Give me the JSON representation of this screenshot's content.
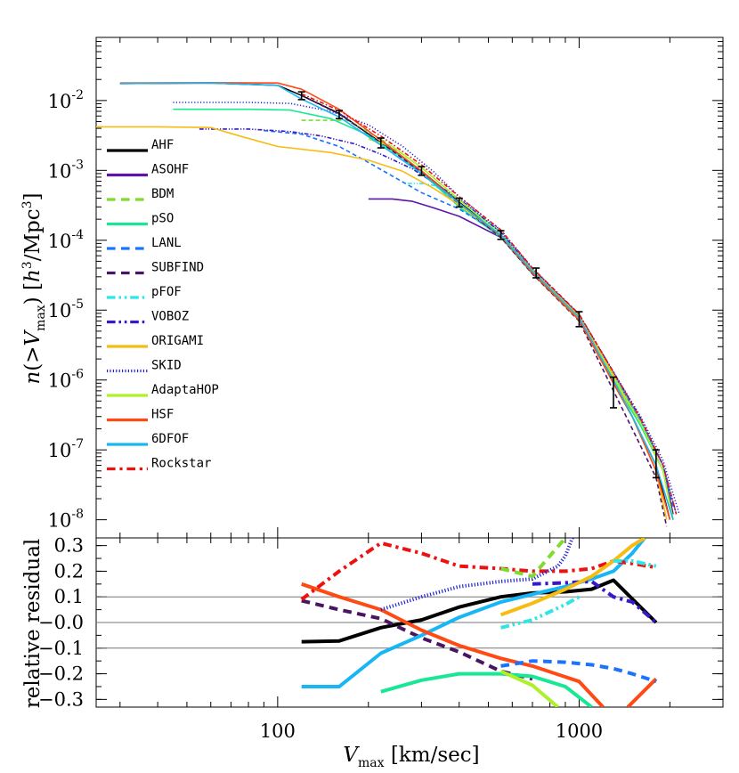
{
  "chart_data": [
    {
      "type": "line",
      "xscale": "log",
      "yscale": "log",
      "xlim": [
        25,
        3000
      ],
      "ylim": [
        5.5e-09,
        0.08
      ],
      "ylabel": "n(>V_max) [h^3/Mpc^3]",
      "y_ticks": [
        {
          "value": 0.01,
          "label": "10",
          "exp": "-2"
        },
        {
          "value": 0.001,
          "label": "10",
          "exp": "-3"
        },
        {
          "value": 0.0001,
          "label": "10",
          "exp": "-4"
        },
        {
          "value": 1e-05,
          "label": "10",
          "exp": "-5"
        },
        {
          "value": 1e-06,
          "label": "10",
          "exp": "-6"
        },
        {
          "value": 1e-07,
          "label": "10",
          "exp": "-7"
        },
        {
          "value": 1e-08,
          "label": "10",
          "exp": "-8"
        }
      ],
      "series": [
        {
          "name": "AHF",
          "color": "#000000",
          "dash": "solid",
          "x": [
            30,
            60,
            100,
            120,
            160,
            220,
            300,
            400,
            550,
            700,
            1000,
            1300,
            1500,
            1800,
            2000
          ],
          "y": [
            0.0175,
            0.0178,
            0.0165,
            0.0118,
            0.0065,
            0.0025,
            0.00098,
            0.00035,
            0.00012,
            3.6e-05,
            7.5e-06,
            9e-07,
            3e-07,
            6e-08,
            1e-08
          ]
        },
        {
          "name": "ASOHF",
          "color": "#5b16a8",
          "dash": "solid",
          "x": [
            200,
            240,
            280,
            330,
            400,
            550,
            700,
            1000,
            1300,
            1600,
            1900,
            2050
          ],
          "y": [
            0.00039,
            0.00039,
            0.00036,
            0.00029,
            0.00022,
            0.00011,
            3.4e-05,
            7.8e-06,
            1.2e-06,
            2.5e-07,
            6e-08,
            1.2e-08
          ]
        },
        {
          "name": "BDM",
          "color": "#7edc2e",
          "dash": "dashed",
          "x": [
            120,
            170,
            220,
            300,
            400,
            550,
            700,
            1000,
            1300,
            1600,
            1900,
            2050
          ],
          "y": [
            0.0052,
            0.0052,
            0.0028,
            0.0011,
            0.00038,
            0.00013,
            3.8e-05,
            8.2e-06,
            1.2e-06,
            2.5e-07,
            5e-08,
            1e-08
          ]
        },
        {
          "name": "pSO",
          "color": "#18e896",
          "dash": "solid",
          "x": [
            45,
            80,
            110,
            150,
            200,
            260,
            330,
            400,
            550,
            700,
            1000,
            1300,
            1600,
            1900,
            2050
          ],
          "y": [
            0.0075,
            0.0075,
            0.0073,
            0.0055,
            0.0032,
            0.0015,
            0.00064,
            0.0003,
            0.00011,
            3.3e-05,
            7.2e-06,
            1e-06,
            2.2e-07,
            5e-08,
            1e-08
          ]
        },
        {
          "name": "LANL",
          "color": "#1a73ff",
          "dash": "dashed",
          "x": [
            90,
            120,
            160,
            200,
            250,
            300,
            400,
            550,
            700,
            1000,
            1300,
            1600,
            1900,
            2050
          ],
          "y": [
            0.0037,
            0.0033,
            0.0022,
            0.0013,
            0.00075,
            0.00048,
            0.00028,
            0.00012,
            3.7e-05,
            8.3e-06,
            1.2e-06,
            2.5e-07,
            6e-08,
            1.5e-08
          ]
        },
        {
          "name": "SUBFIND",
          "color": "#4a1560",
          "dash": "dashed",
          "x": [
            120,
            160,
            220,
            300,
            400,
            550,
            700,
            1000,
            1300,
            1500,
            1800,
            1950
          ],
          "y": [
            0.0118,
            0.0064,
            0.0025,
            0.00094,
            0.00033,
            0.00011,
            3.3e-05,
            7e-06,
            7e-07,
            2e-07,
            4e-08,
            8e-09
          ]
        },
        {
          "name": "pFOF",
          "color": "#2ee6e6",
          "dash": "dashdotdot",
          "x": [
            270,
            300,
            330,
            400,
            550,
            700,
            1000,
            1300,
            1600,
            1900,
            2100
          ],
          "y": [
            0.00065,
            0.00065,
            0.00061,
            0.00039,
            0.00013,
            3.9e-05,
            8.5e-06,
            1.2e-06,
            2.7e-07,
            6e-08,
            1.2e-08
          ]
        },
        {
          "name": "VOBOZ",
          "color": "#3a17c9",
          "dash": "dashdotdot",
          "x": [
            55,
            80,
            110,
            140,
            180,
            220,
            280,
            400,
            550,
            700,
            1000,
            1300,
            1600,
            1900,
            2100
          ],
          "y": [
            0.0039,
            0.0039,
            0.0036,
            0.0031,
            0.0024,
            0.0017,
            0.00105,
            0.00039,
            0.00013,
            3.9e-05,
            8.5e-06,
            1.3e-06,
            2.8e-07,
            6e-08,
            1.2e-08
          ]
        },
        {
          "name": "ORIGAMI",
          "color": "#f5bd13",
          "dash": "solid",
          "x": [
            25,
            40,
            60,
            75,
            100,
            150,
            200,
            260,
            330,
            400,
            550,
            700,
            1000,
            1300,
            1500,
            1800,
            1950
          ],
          "y": [
            0.0042,
            0.0042,
            0.0041,
            0.0031,
            0.0022,
            0.0018,
            0.0014,
            0.00097,
            0.00055,
            0.00032,
            0.00012,
            3.7e-05,
            8.2e-06,
            1.2e-06,
            3e-07,
            5e-08,
            1e-08
          ]
        },
        {
          "name": "SKID",
          "color": "#2323d6",
          "dash": "dotted",
          "x": [
            45,
            80,
            110,
            150,
            200,
            260,
            330,
            400,
            550,
            700,
            1000,
            1300,
            1600,
            1900,
            2150
          ],
          "y": [
            0.0094,
            0.0094,
            0.0091,
            0.007,
            0.0045,
            0.0022,
            0.00095,
            0.00042,
            0.00014,
            4e-05,
            8.7e-06,
            1.3e-06,
            3e-07,
            7e-08,
            1.2e-08
          ]
        },
        {
          "name": "AdaptaHOP",
          "color": "#aef02a",
          "dash": "solid",
          "x": [
            200,
            240,
            300,
            400,
            550,
            700,
            1000,
            1300,
            1600,
            1900,
            2050
          ],
          "y": [
            0.0028,
            0.0022,
            0.0011,
            0.00038,
            0.00012,
            3.5e-05,
            7.5e-06,
            1.1e-06,
            2.4e-07,
            5e-08,
            1e-08
          ]
        },
        {
          "name": "HSF",
          "color": "#ff4a14",
          "dash": "solid",
          "x": [
            30,
            60,
            100,
            120,
            160,
            220,
            300,
            400,
            550,
            700,
            1000,
            1300,
            1500,
            1800,
            2000
          ],
          "y": [
            0.0178,
            0.018,
            0.0178,
            0.0145,
            0.0075,
            0.0027,
            0.00098,
            0.00034,
            0.000115,
            3.4e-05,
            7.2e-06,
            9e-07,
            3e-07,
            5e-08,
            1e-08
          ]
        },
        {
          "name": "6DFOF",
          "color": "#19b6f5",
          "dash": "solid",
          "x": [
            30,
            60,
            100,
            120,
            160,
            220,
            300,
            400,
            550,
            700,
            1000,
            1300,
            1500,
            1800,
            2050
          ],
          "y": [
            0.0175,
            0.0178,
            0.0165,
            0.0105,
            0.0058,
            0.0023,
            0.0009,
            0.00034,
            0.000118,
            3.6e-05,
            7.8e-06,
            1e-06,
            3e-07,
            6e-08,
            1e-08
          ]
        },
        {
          "name": "Rockstar",
          "color": "#ee1111",
          "dash": "dashdot",
          "x": [
            120,
            160,
            220,
            300,
            400,
            550,
            700,
            1000,
            1300,
            1600,
            1900,
            2100
          ],
          "y": [
            0.0125,
            0.0072,
            0.0031,
            0.0012,
            0.00042,
            0.00014,
            4e-05,
            8.8e-06,
            1.3e-06,
            2.8e-07,
            6e-08,
            1.2e-08
          ]
        }
      ],
      "error_bars": {
        "color": "#000000",
        "points": [
          {
            "x": 120,
            "y": 0.0118,
            "lo": 0.0103,
            "hi": 0.0133
          },
          {
            "x": 160,
            "y": 0.0063,
            "lo": 0.0055,
            "hi": 0.0072
          },
          {
            "x": 220,
            "y": 0.0025,
            "lo": 0.0021,
            "hi": 0.0029
          },
          {
            "x": 300,
            "y": 0.00098,
            "lo": 0.00085,
            "hi": 0.00113
          },
          {
            "x": 400,
            "y": 0.00035,
            "lo": 0.0003,
            "hi": 0.0004
          },
          {
            "x": 550,
            "y": 0.00012,
            "lo": 0.000103,
            "hi": 0.000137
          },
          {
            "x": 720,
            "y": 3.4e-05,
            "lo": 2.9e-05,
            "hi": 4e-05
          },
          {
            "x": 1000,
            "y": 7.5e-06,
            "lo": 5.8e-06,
            "hi": 9.5e-06
          },
          {
            "x": 1300,
            "y": 7e-07,
            "lo": 4e-07,
            "hi": 1.1e-06
          },
          {
            "x": 1800,
            "y": 7e-08,
            "lo": 4e-08,
            "hi": 1e-07
          }
        ]
      },
      "legend": {
        "position": "left"
      }
    },
    {
      "type": "line",
      "xscale": "log",
      "xlim": [
        25,
        3000
      ],
      "ylim": [
        -0.33,
        0.33
      ],
      "xlabel": "V_max [km/sec]",
      "ylabel": "relative residual",
      "x_ticks": [
        {
          "value": 100,
          "label": "100"
        },
        {
          "value": 1000,
          "label": "1000"
        }
      ],
      "y_ticks": [
        {
          "value": 0.3,
          "label": "0.3"
        },
        {
          "value": 0.2,
          "label": "0.2"
        },
        {
          "value": 0.1,
          "label": "0.1"
        },
        {
          "value": 0,
          "label": "−0.0"
        },
        {
          "value": -0.1,
          "label": "−0.1"
        },
        {
          "value": -0.2,
          "label": "−0.2"
        },
        {
          "value": -0.3,
          "label": "−0.3"
        }
      ],
      "ref_lines": [
        0.1,
        0,
        -0.1
      ],
      "series": [
        {
          "name": "AHF",
          "color": "#000000",
          "dash": "solid",
          "x": [
            120,
            160,
            220,
            270,
            300,
            400,
            550,
            700,
            900,
            1100,
            1300,
            1800
          ],
          "y": [
            -0.075,
            -0.072,
            -0.02,
            0,
            0.01,
            0.06,
            0.1,
            0.115,
            0.12,
            0.13,
            0.165,
            0
          ]
        },
        {
          "name": "SUBFIND",
          "color": "#4a1560",
          "dash": "dashed",
          "x": [
            120,
            160,
            220,
            300,
            400,
            550,
            700
          ],
          "y": [
            0.085,
            0.05,
            0.015,
            -0.06,
            -0.115,
            -0.19,
            -0.22
          ]
        },
        {
          "name": "pSO",
          "color": "#18e896",
          "dash": "solid",
          "x": [
            220,
            300,
            400,
            550,
            700,
            900,
            1100
          ],
          "y": [
            -0.27,
            -0.225,
            -0.2,
            -0.2,
            -0.21,
            -0.25,
            -0.33
          ]
        },
        {
          "name": "AdaptaHOP",
          "color": "#aef02a",
          "dash": "solid",
          "x": [
            550,
            700,
            850
          ],
          "y": [
            -0.19,
            -0.245,
            -0.33
          ]
        },
        {
          "name": "6DFOF",
          "color": "#19b6f5",
          "dash": "solid",
          "x": [
            120,
            160,
            220,
            300,
            400,
            550,
            700,
            900,
            1100,
            1300,
            1500,
            1650
          ],
          "y": [
            -0.25,
            -0.25,
            -0.12,
            -0.05,
            0.02,
            0.08,
            0.11,
            0.14,
            0.17,
            0.2,
            0.27,
            0.33
          ]
        },
        {
          "name": "HSF",
          "color": "#ff4a14",
          "dash": "solid",
          "x": [
            120,
            160,
            220,
            300,
            400,
            550,
            700,
            1000,
            1200
          ],
          "y": [
            0.15,
            0.1,
            0.05,
            -0.03,
            -0.09,
            -0.14,
            -0.17,
            -0.23,
            -0.33
          ]
        },
        {
          "name": "HSF",
          "color": "#ff4a14",
          "dash": "solid",
          "x": [
            1450,
            1800
          ],
          "y": [
            -0.33,
            -0.22
          ]
        },
        {
          "name": "Rockstar",
          "color": "#ee1111",
          "dash": "dashdot",
          "x": [
            120,
            160,
            220,
            300,
            400,
            550,
            700,
            900,
            1100,
            1300,
            1500,
            1800
          ],
          "y": [
            0.09,
            0.2,
            0.31,
            0.27,
            0.22,
            0.21,
            0.2,
            0.2,
            0.21,
            0.24,
            0.23,
            0.215
          ]
        },
        {
          "name": "SKID",
          "color": "#2323d6",
          "dash": "dotted",
          "x": [
            220,
            300,
            400,
            550,
            700,
            850,
            900,
            950
          ],
          "y": [
            0.05,
            0.1,
            0.14,
            0.16,
            0.17,
            0.22,
            0.26,
            0.33
          ]
        },
        {
          "name": "VOBOZ",
          "color": "#3a17c9",
          "dash": "dashdot",
          "x": [
            700,
            900,
            1100,
            1300,
            1500,
            1800
          ],
          "y": [
            0.15,
            0.155,
            0.16,
            0.1,
            0.08,
            0
          ]
        },
        {
          "name": "ORIGAMI",
          "color": "#f5bd13",
          "dash": "solid",
          "x": [
            550,
            700,
            900,
            1100,
            1300,
            1500,
            1650
          ],
          "y": [
            0.03,
            0.075,
            0.13,
            0.18,
            0.24,
            0.3,
            0.33
          ]
        },
        {
          "name": "pFOF",
          "color": "#2ee6e6",
          "dash": "dashdotdot",
          "x": [
            550,
            700,
            900,
            1000
          ],
          "y": [
            -0.02,
            0.01,
            0.07,
            0.1
          ]
        },
        {
          "name": "pFOF",
          "color": "#2ee6e6",
          "dash": "dashdotdot",
          "x": [
            1300,
            1500,
            1800
          ],
          "y": [
            0.24,
            0.24,
            0.22
          ]
        },
        {
          "name": "BDM",
          "color": "#7edc2e",
          "dash": "dashed",
          "x": [
            550,
            700,
            900
          ],
          "y": [
            0.21,
            0.18,
            0.33
          ]
        },
        {
          "name": "LANL",
          "color": "#1a73ff",
          "dash": "dashed",
          "x": [
            550,
            700,
            900,
            1100,
            1300,
            1500,
            1800
          ],
          "y": [
            -0.17,
            -0.15,
            -0.155,
            -0.165,
            -0.18,
            -0.2,
            -0.23
          ]
        }
      ]
    }
  ]
}
